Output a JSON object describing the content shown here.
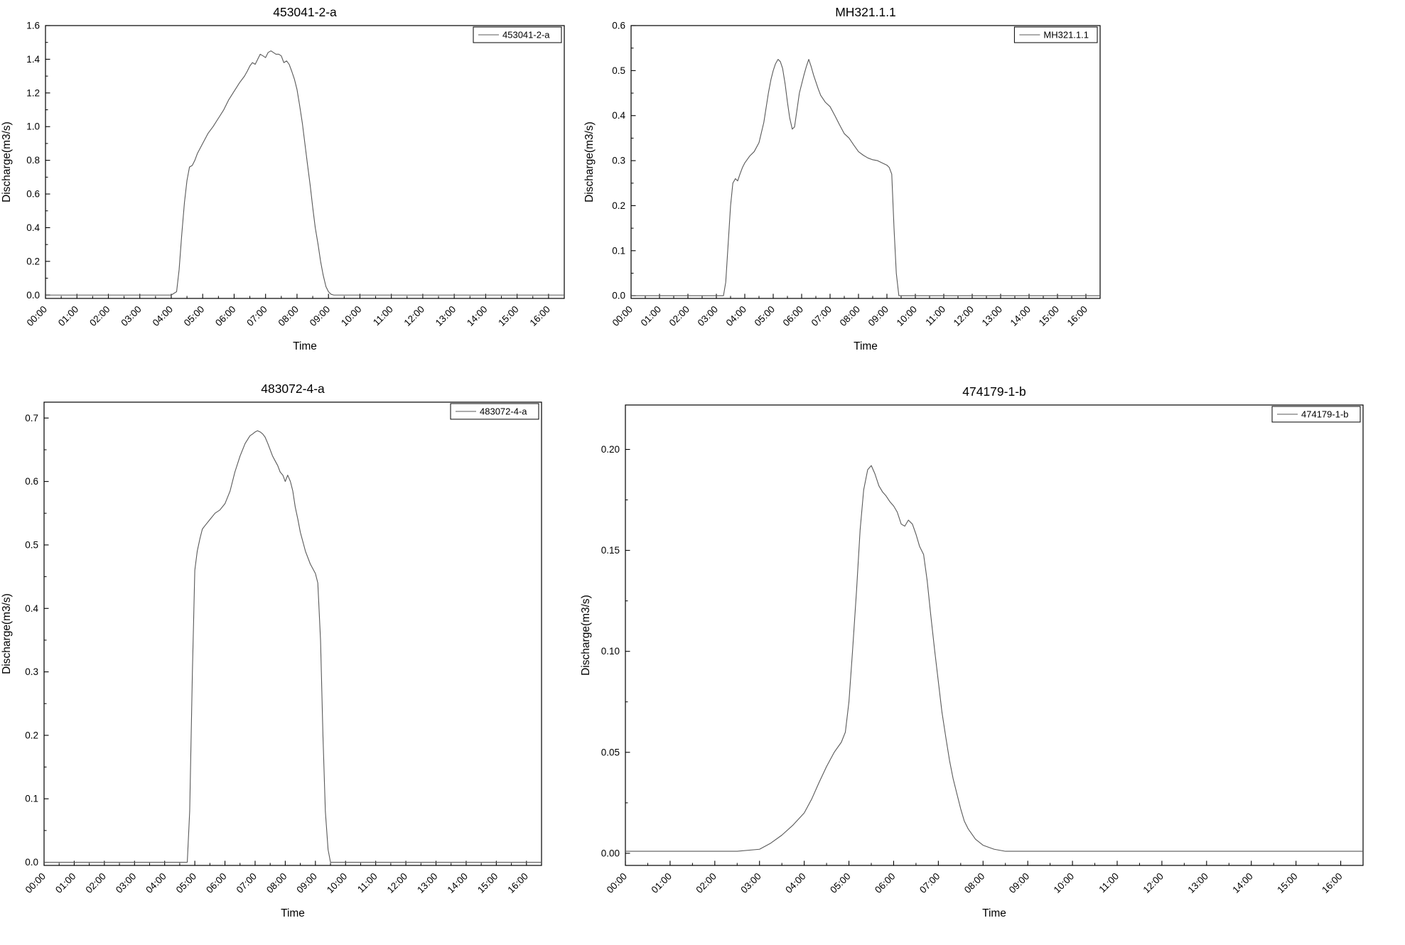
{
  "style": {
    "background": "#ffffff",
    "axis_color": "#000000",
    "text_color": "#000000",
    "line_color": "#595959"
  },
  "chart_data": [
    {
      "type": "line",
      "title": "453041-2-a",
      "xlabel": "Time",
      "ylabel": "Discharge(m3/s)",
      "legend": "453041-2-a",
      "legend_position": "top-right",
      "grid": false,
      "xlim": [
        0,
        16.5
      ],
      "ylim": [
        -0.02,
        1.6
      ],
      "xtick_values": [
        0,
        1,
        2,
        3,
        4,
        5,
        6,
        7,
        8,
        9,
        10,
        11,
        12,
        13,
        14,
        15,
        16
      ],
      "xtick_labels": [
        "00:00",
        "01:00",
        "02:00",
        "03:00",
        "04:00",
        "05:00",
        "06:00",
        "07:00",
        "08:00",
        "09:00",
        "10:00",
        "11:00",
        "12:00",
        "13:00",
        "14:00",
        "15:00",
        "16:00"
      ],
      "ytick_values": [
        0,
        0.2,
        0.4,
        0.6,
        0.8,
        1.0,
        1.2,
        1.4,
        1.6
      ],
      "ytick_labels": [
        "0.0",
        "0.2",
        "0.4",
        "0.6",
        "0.8",
        "1.0",
        "1.2",
        "1.4",
        "1.6"
      ],
      "x": [
        0,
        4.0,
        4.17,
        4.25,
        4.33,
        4.42,
        4.5,
        4.58,
        4.67,
        4.75,
        4.83,
        5.0,
        5.17,
        5.33,
        5.5,
        5.67,
        5.83,
        6.0,
        6.17,
        6.33,
        6.42,
        6.5,
        6.58,
        6.67,
        6.75,
        6.83,
        6.92,
        7.0,
        7.08,
        7.17,
        7.25,
        7.33,
        7.42,
        7.5,
        7.58,
        7.67,
        7.75,
        7.83,
        7.92,
        8.0,
        8.08,
        8.17,
        8.25,
        8.33,
        8.42,
        8.5,
        8.58,
        8.67,
        8.75,
        8.83,
        8.92,
        9.0,
        9.08,
        9.17,
        16.5
      ],
      "y": [
        0,
        0,
        0.02,
        0.15,
        0.35,
        0.55,
        0.68,
        0.76,
        0.77,
        0.8,
        0.84,
        0.9,
        0.96,
        1.0,
        1.05,
        1.1,
        1.16,
        1.21,
        1.26,
        1.3,
        1.33,
        1.36,
        1.38,
        1.37,
        1.4,
        1.43,
        1.42,
        1.41,
        1.44,
        1.45,
        1.44,
        1.43,
        1.43,
        1.42,
        1.38,
        1.39,
        1.37,
        1.33,
        1.28,
        1.22,
        1.13,
        1.02,
        0.9,
        0.78,
        0.65,
        0.52,
        0.4,
        0.3,
        0.2,
        0.12,
        0.05,
        0.02,
        0.005,
        0,
        0
      ]
    },
    {
      "type": "line",
      "title": "MH321.1.1",
      "xlabel": "Time",
      "ylabel": "Discharge(m3/s)",
      "legend": "MH321.1.1",
      "legend_position": "top-right",
      "grid": false,
      "xlim": [
        0,
        16.5
      ],
      "ylim": [
        -0.006,
        0.6
      ],
      "xtick_values": [
        0,
        1,
        2,
        3,
        4,
        5,
        6,
        7,
        8,
        9,
        10,
        11,
        12,
        13,
        14,
        15,
        16
      ],
      "xtick_labels": [
        "00:00",
        "01:00",
        "02:00",
        "03:00",
        "04:00",
        "05:00",
        "06:00",
        "07:00",
        "08:00",
        "09:00",
        "10:00",
        "11:00",
        "12:00",
        "13:00",
        "14:00",
        "15:00",
        "16:00"
      ],
      "ytick_values": [
        0,
        0.1,
        0.2,
        0.3,
        0.4,
        0.5,
        0.6
      ],
      "ytick_labels": [
        "0.0",
        "0.1",
        "0.2",
        "0.3",
        "0.4",
        "0.5",
        "0.6"
      ],
      "x": [
        0,
        3.25,
        3.33,
        3.42,
        3.5,
        3.58,
        3.67,
        3.75,
        3.83,
        3.92,
        4.0,
        4.17,
        4.33,
        4.5,
        4.67,
        4.83,
        4.92,
        5.0,
        5.08,
        5.17,
        5.25,
        5.33,
        5.42,
        5.5,
        5.58,
        5.67,
        5.75,
        5.83,
        5.92,
        6.0,
        6.08,
        6.17,
        6.25,
        6.33,
        6.42,
        6.5,
        6.58,
        6.67,
        6.83,
        7.0,
        7.17,
        7.33,
        7.5,
        7.67,
        7.83,
        8.0,
        8.17,
        8.33,
        8.5,
        8.67,
        8.83,
        9.0,
        9.08,
        9.17,
        9.25,
        9.33,
        9.42,
        16.5
      ],
      "y": [
        0,
        0,
        0.03,
        0.12,
        0.2,
        0.25,
        0.26,
        0.255,
        0.27,
        0.285,
        0.295,
        0.31,
        0.32,
        0.34,
        0.385,
        0.45,
        0.48,
        0.5,
        0.515,
        0.525,
        0.52,
        0.505,
        0.47,
        0.43,
        0.395,
        0.37,
        0.375,
        0.41,
        0.45,
        0.47,
        0.49,
        0.51,
        0.525,
        0.51,
        0.49,
        0.475,
        0.46,
        0.445,
        0.43,
        0.42,
        0.4,
        0.38,
        0.36,
        0.35,
        0.335,
        0.32,
        0.312,
        0.306,
        0.302,
        0.3,
        0.295,
        0.29,
        0.285,
        0.27,
        0.15,
        0.05,
        0,
        0
      ]
    },
    {
      "type": "line",
      "title": "483072-4-a",
      "xlabel": "Time",
      "ylabel": "Discharge(m3/s)",
      "legend": "483072-4-a",
      "legend_position": "top-right",
      "grid": false,
      "xlim": [
        0,
        16.5
      ],
      "ylim": [
        -0.005,
        0.725
      ],
      "xtick_values": [
        0,
        1,
        2,
        3,
        4,
        5,
        6,
        7,
        8,
        9,
        10,
        11,
        12,
        13,
        14,
        15,
        16
      ],
      "xtick_labels": [
        "00:00",
        "01:00",
        "02:00",
        "03:00",
        "04:00",
        "05:00",
        "06:00",
        "07:00",
        "08:00",
        "09:00",
        "10:00",
        "11:00",
        "12:00",
        "13:00",
        "14:00",
        "15:00",
        "16:00"
      ],
      "ytick_values": [
        0,
        0.1,
        0.2,
        0.3,
        0.4,
        0.5,
        0.6,
        0.7
      ],
      "ytick_labels": [
        "0.0",
        "0.1",
        "0.2",
        "0.3",
        "0.4",
        "0.5",
        "0.6",
        "0.7"
      ],
      "x": [
        0,
        4.75,
        4.83,
        4.92,
        5.0,
        5.08,
        5.17,
        5.25,
        5.33,
        5.5,
        5.67,
        5.83,
        6.0,
        6.17,
        6.33,
        6.5,
        6.67,
        6.83,
        6.92,
        7.0,
        7.08,
        7.17,
        7.25,
        7.33,
        7.42,
        7.5,
        7.58,
        7.67,
        7.75,
        7.83,
        7.92,
        8.0,
        8.08,
        8.17,
        8.25,
        8.33,
        8.42,
        8.5,
        8.67,
        8.83,
        9.0,
        9.08,
        9.17,
        9.25,
        9.33,
        9.42,
        9.5,
        16.5
      ],
      "y": [
        0,
        0,
        0.08,
        0.3,
        0.46,
        0.49,
        0.51,
        0.525,
        0.53,
        0.54,
        0.55,
        0.555,
        0.565,
        0.585,
        0.615,
        0.64,
        0.66,
        0.672,
        0.675,
        0.678,
        0.68,
        0.678,
        0.675,
        0.67,
        0.66,
        0.65,
        0.64,
        0.632,
        0.625,
        0.615,
        0.61,
        0.6,
        0.61,
        0.6,
        0.585,
        0.56,
        0.54,
        0.52,
        0.49,
        0.47,
        0.455,
        0.44,
        0.35,
        0.2,
        0.08,
        0.02,
        0,
        0
      ]
    },
    {
      "type": "line",
      "title": "474179-1-b",
      "xlabel": "Time",
      "ylabel": "Discharge(m3/s)",
      "legend": "474179-1-b",
      "legend_position": "top-right",
      "grid": false,
      "xlim": [
        0,
        16.5
      ],
      "ylim": [
        -0.006,
        0.222
      ],
      "xtick_values": [
        0,
        1,
        2,
        3,
        4,
        5,
        6,
        7,
        8,
        9,
        10,
        11,
        12,
        13,
        14,
        15,
        16
      ],
      "xtick_labels": [
        "00:00",
        "01:00",
        "02:00",
        "03:00",
        "04:00",
        "05:00",
        "06:00",
        "07:00",
        "08:00",
        "09:00",
        "10:00",
        "11:00",
        "12:00",
        "13:00",
        "14:00",
        "15:00",
        "16:00"
      ],
      "ytick_values": [
        0,
        0.05,
        0.1,
        0.15,
        0.2
      ],
      "ytick_labels": [
        "0.00",
        "0.05",
        "0.10",
        "0.15",
        "0.20"
      ],
      "x": [
        0,
        2.5,
        3.0,
        3.25,
        3.5,
        3.75,
        4.0,
        4.17,
        4.33,
        4.5,
        4.67,
        4.83,
        4.92,
        5.0,
        5.08,
        5.17,
        5.25,
        5.33,
        5.42,
        5.5,
        5.58,
        5.67,
        5.75,
        5.83,
        5.92,
        6.0,
        6.08,
        6.17,
        6.25,
        6.33,
        6.42,
        6.5,
        6.58,
        6.67,
        6.75,
        6.83,
        6.92,
        7.0,
        7.08,
        7.17,
        7.25,
        7.33,
        7.42,
        7.5,
        7.58,
        7.67,
        7.83,
        8.0,
        8.25,
        8.5,
        16.5
      ],
      "y": [
        0.001,
        0.001,
        0.002,
        0.005,
        0.009,
        0.014,
        0.02,
        0.027,
        0.035,
        0.043,
        0.05,
        0.055,
        0.06,
        0.075,
        0.1,
        0.13,
        0.16,
        0.18,
        0.19,
        0.192,
        0.188,
        0.182,
        0.179,
        0.177,
        0.174,
        0.172,
        0.169,
        0.163,
        0.162,
        0.165,
        0.163,
        0.158,
        0.152,
        0.148,
        0.135,
        0.118,
        0.1,
        0.085,
        0.07,
        0.057,
        0.046,
        0.037,
        0.029,
        0.022,
        0.016,
        0.012,
        0.007,
        0.004,
        0.002,
        0.001,
        0.001
      ]
    }
  ]
}
